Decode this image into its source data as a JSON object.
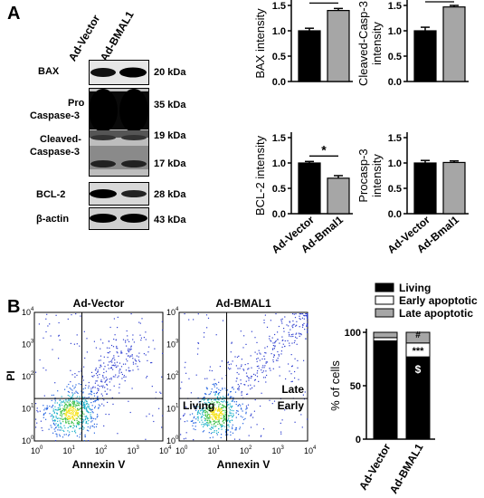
{
  "panel_a": {
    "label": "A",
    "lanes": [
      "Ad-Vector",
      "Ad-BMAL1"
    ],
    "blots": [
      {
        "name": "BAX",
        "kda": [
          "20 kDa"
        ]
      },
      {
        "name": "Pro Caspase-3 / Cleaved-Caspase-3",
        "labels": [
          "Pro",
          "Caspase-3",
          "Cleaved-",
          "Caspase-3"
        ],
        "kda": [
          "35 kDa",
          "19 kDa",
          "17 kDa"
        ]
      },
      {
        "name": "BCL-2",
        "kda": [
          "28 kDa"
        ]
      },
      {
        "name": "β-actin",
        "kda": [
          "43 kDa"
        ]
      }
    ]
  },
  "panel_b": {
    "label": "B",
    "flow_plots": [
      {
        "title": "Ad-Vector",
        "quadrant_labels": []
      },
      {
        "title": "Ad-BMAL1",
        "quadrant_labels": [
          "Living",
          "Late",
          "Early"
        ]
      }
    ],
    "flow_axes": {
      "x_label": "Annexin V",
      "y_label": "PI",
      "ticks": [
        "10",
        "10",
        "10",
        "10",
        "10"
      ],
      "exponents": [
        "0",
        "1",
        "2",
        "3",
        "4"
      ]
    }
  },
  "chart_data": [
    {
      "type": "bar",
      "categories": [
        "Ad-Vector",
        "Ad-Bmal1"
      ],
      "values": [
        1.0,
        1.4
      ],
      "errors": [
        0.05,
        0.04
      ],
      "colors": [
        "#000000",
        "#a6a6a6"
      ],
      "ylabel": "BAX intensity",
      "ylim": [
        0,
        1.5
      ],
      "yticks": [
        "0.0",
        "0.5",
        "1.0",
        "1.5"
      ],
      "significance": "**"
    },
    {
      "type": "bar",
      "categories": [
        "Ad-Vector",
        "Ad-Bmal1"
      ],
      "values": [
        1.0,
        1.47
      ],
      "errors": [
        0.07,
        0.03
      ],
      "colors": [
        "#000000",
        "#a6a6a6"
      ],
      "ylabel": "Cleaved-Casp-3 intensity",
      "ylim": [
        0,
        1.5
      ],
      "yticks": [
        "0.0",
        "0.5",
        "1.0",
        "1.5"
      ],
      "significance": "**"
    },
    {
      "type": "bar",
      "categories": [
        "Ad-Vector",
        "Ad-Bmal1"
      ],
      "values": [
        1.0,
        0.7
      ],
      "errors": [
        0.03,
        0.05
      ],
      "colors": [
        "#000000",
        "#a6a6a6"
      ],
      "ylabel": "BCL-2 intensity",
      "ylim": [
        0,
        1.5
      ],
      "yticks": [
        "0.0",
        "0.5",
        "1.0",
        "1.5"
      ],
      "significance": "*"
    },
    {
      "type": "bar",
      "categories": [
        "Ad-Vector",
        "Ad-Bmal1"
      ],
      "values": [
        1.0,
        1.01
      ],
      "errors": [
        0.05,
        0.03
      ],
      "colors": [
        "#000000",
        "#a6a6a6"
      ],
      "ylabel": "Procasp-3 intensity",
      "ylim": [
        0,
        1.5
      ],
      "yticks": [
        "0.0",
        "0.5",
        "1.0",
        "1.5"
      ],
      "significance": ""
    },
    {
      "type": "bar",
      "stacked": true,
      "categories": [
        "Ad-Vector",
        "Ad-BMAL1"
      ],
      "series": [
        {
          "name": "Living",
          "values": [
            92,
            77
          ],
          "color": "#000000"
        },
        {
          "name": "Early apoptotic",
          "values": [
            3,
            13
          ],
          "color": "#ffffff"
        },
        {
          "name": "Late apoptotic",
          "values": [
            5,
            10
          ],
          "color": "#a6a6a6"
        }
      ],
      "ylabel": "% of cells",
      "ylim": [
        0,
        100
      ],
      "yticks": [
        "0",
        "50",
        "100"
      ],
      "annotations": [
        "#",
        "***",
        "$"
      ],
      "legend": "top"
    }
  ]
}
